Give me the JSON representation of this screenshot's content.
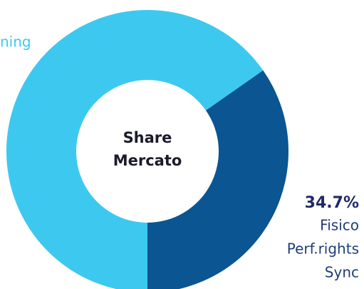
{
  "chart_data": {
    "type": "donut",
    "center_text": [
      "Share",
      "Mercato"
    ],
    "segments": [
      {
        "value": 65.3,
        "color": "#3dc9ef",
        "label_lines": [
          "ning"
        ]
      },
      {
        "value": 34.7,
        "color": "#0a5592",
        "value_label": "34.7%",
        "label_lines": [
          "Fisico",
          "Perf.rights",
          "Sync"
        ]
      }
    ]
  }
}
